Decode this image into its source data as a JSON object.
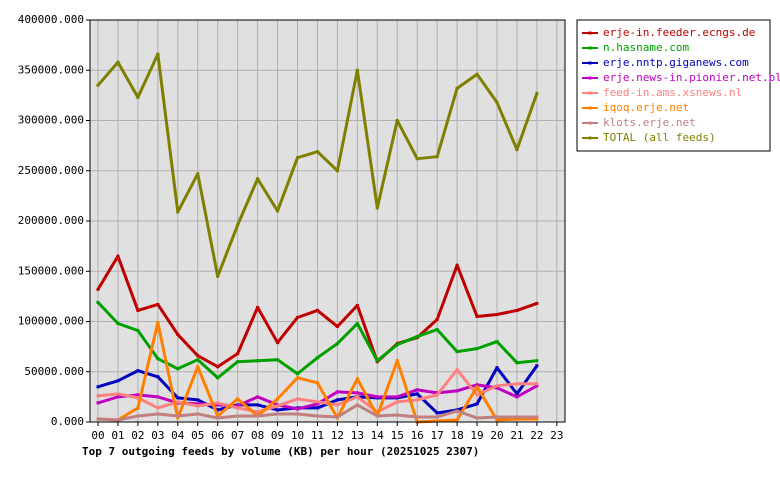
{
  "chart_data": {
    "type": "line",
    "title": "Top 7 outgoing feeds by volume (KB) per hour (20251025 2307)",
    "grid": true,
    "categories": [
      "00",
      "01",
      "02",
      "03",
      "04",
      "05",
      "06",
      "07",
      "08",
      "09",
      "10",
      "11",
      "12",
      "13",
      "14",
      "15",
      "16",
      "17",
      "18",
      "19",
      "20",
      "21",
      "22",
      "23"
    ],
    "ylim": [
      0,
      400000
    ],
    "yticks": [
      {
        "value": 0,
        "label": "0.000"
      },
      {
        "value": 50000,
        "label": "50000.000"
      },
      {
        "value": 100000,
        "label": "100000.000"
      },
      {
        "value": 150000,
        "label": "150000.000"
      },
      {
        "value": 200000,
        "label": "200000.000"
      },
      {
        "value": 250000,
        "label": "250000.000"
      },
      {
        "value": 300000,
        "label": "300000.000"
      },
      {
        "value": 350000,
        "label": "350000.000"
      },
      {
        "value": 400000,
        "label": "400000.000"
      }
    ],
    "series": [
      {
        "name": "erje-in.feeder.ecngs.de",
        "color": "#c00000",
        "values": [
          132000,
          165000,
          111000,
          117000,
          87000,
          66000,
          55000,
          68000,
          114000,
          79000,
          104000,
          111000,
          95000,
          116000,
          60000,
          78000,
          84000,
          102000,
          156000,
          105000,
          107000,
          111000,
          118000,
          null
        ]
      },
      {
        "name": "n.hasname.com",
        "color": "#00a000",
        "values": [
          119000,
          98000,
          91000,
          63000,
          53000,
          62000,
          44000,
          60000,
          61000,
          62000,
          48000,
          64000,
          78000,
          98000,
          61000,
          77000,
          85000,
          92000,
          70000,
          73000,
          80000,
          59000,
          61000,
          null
        ]
      },
      {
        "name": "erje.nntp.giganews.com",
        "color": "#0000c0",
        "values": [
          35000,
          41000,
          51000,
          45000,
          24000,
          22000,
          12000,
          17000,
          17000,
          12000,
          14000,
          14000,
          22000,
          25000,
          24000,
          24000,
          28000,
          9000,
          12000,
          18000,
          54000,
          28000,
          56000,
          null
        ]
      },
      {
        "name": "erje.news-in.pionier.net.pl",
        "color": "#c000c0",
        "values": [
          19000,
          25000,
          27000,
          25000,
          19000,
          18000,
          17000,
          16000,
          25000,
          17000,
          13000,
          18000,
          30000,
          29000,
          25000,
          25000,
          32000,
          29000,
          31000,
          37000,
          34000,
          25000,
          36000,
          null
        ]
      },
      {
        "name": "feed-in.ams.xsnews.nl",
        "color": "#ff8080",
        "values": [
          26000,
          28000,
          24000,
          14000,
          20000,
          16000,
          19000,
          14000,
          10000,
          16000,
          23000,
          20000,
          17000,
          25000,
          10000,
          20000,
          22000,
          27000,
          52000,
          27000,
          36000,
          38000,
          38000,
          null
        ]
      },
      {
        "name": "iqoq.erje.net",
        "color": "#ff8000",
        "values": [
          3000,
          2000,
          14000,
          99000,
          4000,
          55000,
          6000,
          23000,
          6000,
          23000,
          44000,
          39000,
          4000,
          43000,
          6000,
          61000,
          0,
          1000,
          2000,
          35000,
          2000,
          3000,
          3000,
          null
        ]
      },
      {
        "name": "klots.erje.net",
        "color": "#c08080",
        "values": [
          3000,
          2000,
          6000,
          8000,
          6000,
          8000,
          4000,
          6000,
          6000,
          8000,
          8000,
          6000,
          5000,
          17000,
          6000,
          7000,
          5000,
          5000,
          11000,
          4000,
          5000,
          5000,
          5000,
          null
        ]
      },
      {
        "name": "TOTAL (all feeds)",
        "color": "#808000",
        "values": [
          335000,
          358000,
          323000,
          366000,
          209000,
          247000,
          145000,
          196000,
          242000,
          210000,
          263000,
          269000,
          250000,
          350000,
          213000,
          300000,
          262000,
          264000,
          332000,
          346000,
          318000,
          271000,
          327000,
          null
        ]
      }
    ]
  }
}
